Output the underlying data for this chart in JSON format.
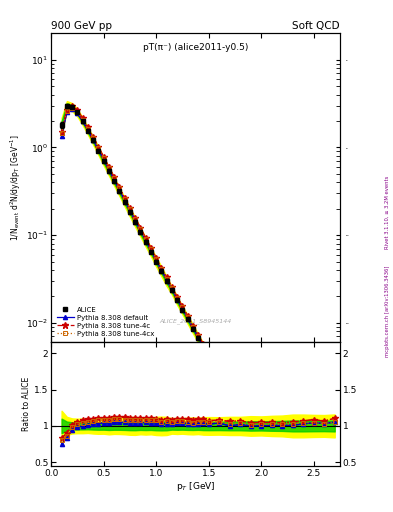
{
  "title_left": "900 GeV pp",
  "title_right": "Soft QCD",
  "plot_title": "pT(π⁻) (alice2011-y0.5)",
  "ylabel_main": "1/N$_{event}$ d$^2$N/dy/dp$_T$ [GeV$^{-1}$]",
  "ylabel_ratio": "Ratio to ALICE",
  "xlabel": "p$_T$ [GeV]",
  "watermark": "ALICE_2011_S8945144",
  "right_label1": "Rivet 3.1.10, ≥ 3.2M events",
  "right_label2": "mcplots.cern.ch [arXiv:1306.3436]",
  "xlim": [
    0.0,
    2.75
  ],
  "ylim_main": [
    0.006,
    20
  ],
  "ylim_ratio": [
    0.45,
    2.15
  ],
  "alice_pt": [
    0.1,
    0.15,
    0.2,
    0.25,
    0.3,
    0.35,
    0.4,
    0.45,
    0.5,
    0.55,
    0.6,
    0.65,
    0.7,
    0.75,
    0.8,
    0.85,
    0.9,
    0.95,
    1.0,
    1.05,
    1.1,
    1.15,
    1.2,
    1.25,
    1.3,
    1.35,
    1.4,
    1.45,
    1.5,
    1.6,
    1.7,
    1.8,
    1.9,
    2.0,
    2.1,
    2.2,
    2.3,
    2.4,
    2.5,
    2.6,
    2.7
  ],
  "alice_y": [
    1.8,
    3.0,
    2.9,
    2.5,
    2.0,
    1.55,
    1.2,
    0.92,
    0.7,
    0.54,
    0.41,
    0.315,
    0.24,
    0.185,
    0.142,
    0.109,
    0.084,
    0.065,
    0.05,
    0.039,
    0.03,
    0.0235,
    0.018,
    0.014,
    0.011,
    0.0086,
    0.0067,
    0.0052,
    0.0041,
    0.0025,
    0.0016,
    0.001,
    0.00065,
    0.00042,
    0.00027,
    0.000175,
    0.000112,
    7.2e-05,
    4.6e-05,
    3e-05,
    1.9e-05
  ],
  "alice_err": [
    0.15,
    0.15,
    0.12,
    0.1,
    0.08,
    0.06,
    0.05,
    0.04,
    0.03,
    0.025,
    0.018,
    0.014,
    0.011,
    0.009,
    0.007,
    0.005,
    0.004,
    0.003,
    0.0025,
    0.002,
    0.0015,
    0.001,
    0.0008,
    0.0006,
    0.0005,
    0.0004,
    0.0003,
    0.00025,
    0.0002,
    0.00012,
    8e-05,
    5e-05,
    3.5e-05,
    2.2e-05,
    1.5e-05,
    1e-05,
    7e-06,
    4.5e-06,
    2.8e-06,
    1.8e-06,
    1.2e-06
  ],
  "pythia_default_pt": [
    0.1,
    0.15,
    0.2,
    0.25,
    0.3,
    0.35,
    0.4,
    0.45,
    0.5,
    0.55,
    0.6,
    0.65,
    0.7,
    0.75,
    0.8,
    0.85,
    0.9,
    0.95,
    1.0,
    1.05,
    1.1,
    1.15,
    1.2,
    1.25,
    1.3,
    1.35,
    1.4,
    1.45,
    1.5,
    1.6,
    1.7,
    1.8,
    1.9,
    2.0,
    2.1,
    2.2,
    2.3,
    2.4,
    2.5,
    2.6,
    2.7
  ],
  "pythia_default_y": [
    1.35,
    2.5,
    2.75,
    2.45,
    2.0,
    1.58,
    1.23,
    0.95,
    0.73,
    0.56,
    0.43,
    0.33,
    0.252,
    0.193,
    0.148,
    0.114,
    0.088,
    0.068,
    0.052,
    0.04,
    0.031,
    0.0242,
    0.0188,
    0.0146,
    0.0113,
    0.0088,
    0.0069,
    0.0054,
    0.0042,
    0.0026,
    0.0016,
    0.00102,
    0.00065,
    0.00042,
    0.000272,
    0.000176,
    0.000113,
    7.4e-05,
    4.8e-05,
    3.1e-05,
    2e-05
  ],
  "pythia_4c_pt": [
    0.1,
    0.15,
    0.2,
    0.25,
    0.3,
    0.35,
    0.4,
    0.45,
    0.5,
    0.55,
    0.6,
    0.65,
    0.7,
    0.75,
    0.8,
    0.85,
    0.9,
    0.95,
    1.0,
    1.05,
    1.1,
    1.15,
    1.2,
    1.25,
    1.3,
    1.35,
    1.4,
    1.45,
    1.5,
    1.6,
    1.7,
    1.8,
    1.9,
    2.0,
    2.1,
    2.2,
    2.3,
    2.4,
    2.5,
    2.6,
    2.7
  ],
  "pythia_4c_y": [
    1.5,
    2.7,
    2.95,
    2.65,
    2.15,
    1.7,
    1.32,
    1.02,
    0.78,
    0.6,
    0.46,
    0.352,
    0.268,
    0.205,
    0.157,
    0.121,
    0.093,
    0.072,
    0.055,
    0.042,
    0.033,
    0.0255,
    0.0198,
    0.0154,
    0.012,
    0.0093,
    0.0073,
    0.0057,
    0.0044,
    0.0027,
    0.0017,
    0.00107,
    0.00068,
    0.00044,
    0.000283,
    0.000183,
    0.000118,
    7.7e-05,
    5e-05,
    3.2e-05,
    2.1e-05
  ],
  "pythia_4cx_pt": [
    0.1,
    0.15,
    0.2,
    0.25,
    0.3,
    0.35,
    0.4,
    0.45,
    0.5,
    0.55,
    0.6,
    0.65,
    0.7,
    0.75,
    0.8,
    0.85,
    0.9,
    0.95,
    1.0,
    1.05,
    1.1,
    1.15,
    1.2,
    1.25,
    1.3,
    1.35,
    1.4,
    1.45,
    1.5,
    1.6,
    1.7,
    1.8,
    1.9,
    2.0,
    2.1,
    2.2,
    2.3,
    2.4,
    2.5,
    2.6,
    2.7
  ],
  "pythia_4cx_y": [
    1.45,
    2.6,
    2.85,
    2.55,
    2.08,
    1.64,
    1.28,
    0.99,
    0.76,
    0.585,
    0.449,
    0.343,
    0.261,
    0.2,
    0.153,
    0.118,
    0.091,
    0.07,
    0.054,
    0.041,
    0.032,
    0.0248,
    0.0193,
    0.015,
    0.0116,
    0.009,
    0.0071,
    0.0055,
    0.0043,
    0.00264,
    0.00164,
    0.00104,
    0.00066,
    0.00043,
    0.000276,
    0.000179,
    0.000115,
    7.5e-05,
    4.8e-05,
    3.1e-05,
    2e-05
  ],
  "color_alice": "#000000",
  "color_default": "#0000cc",
  "color_4c": "#cc0000",
  "color_4cx": "#cc6600",
  "color_band_yellow": "#ffff00",
  "color_band_green": "#00cc00",
  "ratio_yticks": [
    0.5,
    1.0,
    1.5,
    2.0
  ]
}
